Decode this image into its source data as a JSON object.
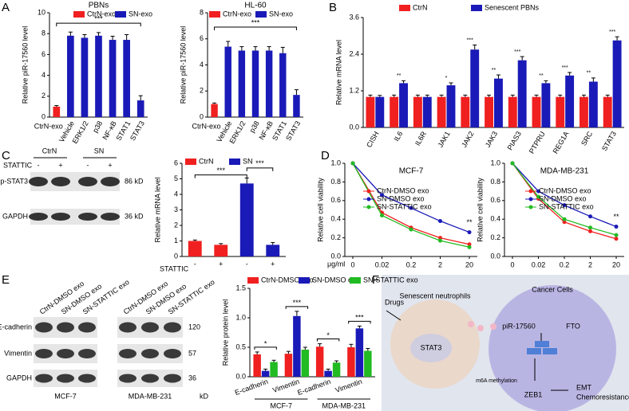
{
  "panels": [
    "A",
    "B",
    "C",
    "D",
    "E",
    "F"
  ],
  "chart_data": [
    {
      "type": "bar",
      "title": "PBNs",
      "y_label": "Relative piR-17560 level",
      "categories": [
        "CtrN-exo",
        "Vehicle",
        "ERK1/2",
        "p38",
        "NF-κB",
        "STAT1",
        "STAT3"
      ],
      "series": [
        {
          "name": "CtrN-exo",
          "color": "#f02020",
          "values": [
            1.0,
            null,
            null,
            null,
            null,
            null,
            null
          ],
          "errors": [
            0.1,
            null,
            null,
            null,
            null,
            null,
            null
          ]
        },
        {
          "name": "SN-exo",
          "color": "#1a1ab8",
          "values": [
            null,
            7.8,
            7.6,
            7.8,
            7.4,
            7.4,
            1.6
          ],
          "errors": [
            null,
            0.35,
            0.3,
            0.3,
            0.35,
            0.5,
            0.45
          ]
        }
      ],
      "ylim": [
        0,
        10
      ],
      "yticks": [
        0,
        2,
        4,
        6,
        8,
        10
      ],
      "significance": "***"
    },
    {
      "type": "bar",
      "title": "HL-60",
      "y_label": "Relative piR-17560 level",
      "categories": [
        "CtrN-exo",
        "Vehicle",
        "ERK1/2",
        "p38",
        "NF-κB",
        "STAT1",
        "STAT3"
      ],
      "series": [
        {
          "name": "CtrN-exo",
          "color": "#f02020",
          "values": [
            1.0,
            null,
            null,
            null,
            null,
            null,
            null
          ],
          "errors": [
            0.08,
            null,
            null,
            null,
            null,
            null,
            null
          ]
        },
        {
          "name": "SN-exo",
          "color": "#1a1ab8",
          "values": [
            null,
            5.4,
            5.1,
            5.1,
            5.1,
            4.9,
            1.7
          ],
          "errors": [
            null,
            0.4,
            0.3,
            0.3,
            0.3,
            0.45,
            0.4
          ]
        }
      ],
      "ylim": [
        0,
        8
      ],
      "yticks": [
        0,
        2,
        4,
        6,
        8
      ],
      "significance": "***"
    },
    {
      "type": "bar",
      "y_label": "Relative mRNA level",
      "categories": [
        "CISH",
        "IL6",
        "IL6R",
        "JAK1",
        "JAK2",
        "JAK3",
        "PIAS3",
        "PTPRU",
        "REG1A",
        "SRC",
        "STAT3"
      ],
      "series": [
        {
          "name": "CtrN",
          "color": "#f02020",
          "values": [
            1.0,
            1.0,
            1.0,
            1.0,
            1.0,
            1.0,
            1.0,
            1.0,
            1.0,
            1.0,
            1.0
          ],
          "errors": [
            0.06,
            0.06,
            0.06,
            0.06,
            0.06,
            0.06,
            0.06,
            0.06,
            0.06,
            0.06,
            0.06
          ]
        },
        {
          "name": "Senescent PBNs",
          "color": "#1a1ab8",
          "values": [
            1.0,
            1.45,
            1.0,
            1.38,
            2.55,
            1.6,
            2.2,
            1.45,
            1.7,
            1.5,
            2.85
          ],
          "errors": [
            0.05,
            0.08,
            0.06,
            0.08,
            0.15,
            0.12,
            0.12,
            0.08,
            0.1,
            0.12,
            0.12
          ]
        }
      ],
      "ylim": [
        0,
        3.6
      ],
      "yticks": [
        {
          "value": 0,
          "label": "0.0"
        },
        1.2,
        2.4,
        3.6
      ],
      "significance": [
        null,
        "**",
        null,
        "*",
        "***",
        "**",
        "***",
        "**",
        "***",
        "**",
        "***"
      ]
    },
    {
      "type": "bar",
      "y_label": "Relative mRNA level",
      "x_label": "STATTIC",
      "categories": [
        "-",
        "+",
        "-",
        "+"
      ],
      "series": [
        {
          "name": "CtrN",
          "color": "#f02020",
          "values": [
            1.0,
            0.75,
            null,
            null
          ],
          "errors": [
            0.06,
            0.08,
            null,
            null
          ]
        },
        {
          "name": "SN",
          "color": "#1a1ab8",
          "values": [
            null,
            null,
            4.7,
            0.75
          ],
          "errors": [
            null,
            null,
            0.35,
            0.15
          ]
        }
      ],
      "ylim": [
        0,
        6
      ],
      "yticks": [
        0,
        1,
        2,
        3,
        4,
        5,
        6
      ],
      "significance": [
        "***",
        "***"
      ]
    },
    {
      "type": "line",
      "title": "MCF-7",
      "y_label": "Relative cell viability",
      "x_label": "μg/ml",
      "categories": [
        "0",
        "0.02",
        "0.2",
        "2",
        "20"
      ],
      "series": [
        {
          "name": "CtrN-DMSO exo",
          "color": "#f02020",
          "values": [
            1.0,
            0.47,
            0.31,
            0.2,
            0.13
          ]
        },
        {
          "name": "SN-DMSO exo",
          "color": "#1a1ab8",
          "values": [
            1.0,
            0.66,
            0.52,
            0.38,
            0.26
          ]
        },
        {
          "name": "SN-STATTIC exo",
          "color": "#22bb22",
          "values": [
            1.0,
            0.44,
            0.29,
            0.17,
            0.1
          ]
        }
      ],
      "ylim": [
        0,
        1
      ],
      "yticks": [
        {
          "value": 0,
          "label": "0.0"
        },
        0.2,
        0.4,
        0.6,
        0.8,
        {
          "value": 1,
          "label": "1.0"
        }
      ],
      "annotation": "**"
    },
    {
      "type": "line",
      "title": "MDA-MB-231",
      "y_label": "Relative cell viability",
      "categories": [
        "0",
        "0.02",
        "0.2",
        "2",
        "20"
      ],
      "series": [
        {
          "name": "CtrN-DMSO exo",
          "color": "#f02020",
          "values": [
            1.0,
            0.62,
            0.37,
            0.27,
            0.19
          ]
        },
        {
          "name": "SN-DMSO exo",
          "color": "#1a1ab8",
          "values": [
            1.0,
            0.7,
            0.55,
            0.43,
            0.32
          ]
        },
        {
          "name": "SN-STATTIC exo",
          "color": "#22bb22",
          "values": [
            1.0,
            0.64,
            0.4,
            0.31,
            0.23
          ]
        }
      ],
      "ylim": [
        0,
        1
      ],
      "yticks": [
        {
          "value": 0,
          "label": "0.0"
        },
        0.2,
        0.4,
        0.6,
        0.8,
        {
          "value": 1,
          "label": "1.0"
        }
      ],
      "annotation": "**"
    },
    {
      "type": "bar",
      "y_label": "Relative protein level",
      "categories": [
        "E-cadherin",
        "Vimentin",
        "E-cadherin",
        "Vimentin"
      ],
      "groups": [
        "MCF-7",
        "MDA-MB-231"
      ],
      "series": [
        {
          "name": "CtrN-DMSO exo",
          "color": "#f02020",
          "values": [
            0.38,
            0.39,
            0.51,
            0.5
          ],
          "errors": [
            0.04,
            0.04,
            0.05,
            0.05
          ]
        },
        {
          "name": "SN-DMSO exo",
          "color": "#1a1ab8",
          "values": [
            0.1,
            1.03,
            0.1,
            0.82
          ],
          "errors": [
            0.03,
            0.08,
            0.03,
            0.04
          ]
        },
        {
          "name": "SN-STATTIC exo",
          "color": "#22bb22",
          "values": [
            0.25,
            0.46,
            0.24,
            0.44
          ],
          "errors": [
            0.03,
            0.04,
            0.03,
            0.04
          ]
        }
      ],
      "ylim": [
        0,
        1.5
      ],
      "yticks": [
        {
          "value": 0,
          "label": "0.0"
        },
        0.5,
        {
          "value": 1,
          "label": "1.0"
        },
        1.5
      ],
      "significance": [
        "*",
        "***",
        "*",
        "***"
      ]
    }
  ],
  "blot_c": {
    "groups": [
      "CtrN",
      "SN"
    ],
    "treatment": "STATTIC",
    "conditions": [
      "-",
      "+",
      "-",
      "+"
    ],
    "rows": [
      {
        "label": "p-STAT3",
        "size": "86 kD"
      },
      {
        "label": "GAPDH",
        "size": "36 kD"
      }
    ]
  },
  "blot_e": {
    "columns": [
      "CtrN-DMSO exo",
      "SN-DMSO exo",
      "SN-STATTIC exo"
    ],
    "rows": [
      {
        "label": "E-cadherin",
        "size": "120"
      },
      {
        "label": "Vimentin",
        "size": "57"
      },
      {
        "label": "GAPDH",
        "size": "36"
      }
    ],
    "unit": "kD",
    "cell_lines": [
      "MCF-7",
      "MDA-MB-231"
    ]
  },
  "diagram": {
    "left_cell": "Senescent neutrophils",
    "right_cell": "Cancer Cells",
    "drugs": "Drugs",
    "stat3": "STAT3",
    "pirna": "piR-17560",
    "fto": "FTO",
    "methylation": "m6A methylation",
    "zeb1": "ZEB1",
    "outcome": [
      "EMT",
      "Chemoresistance"
    ]
  }
}
